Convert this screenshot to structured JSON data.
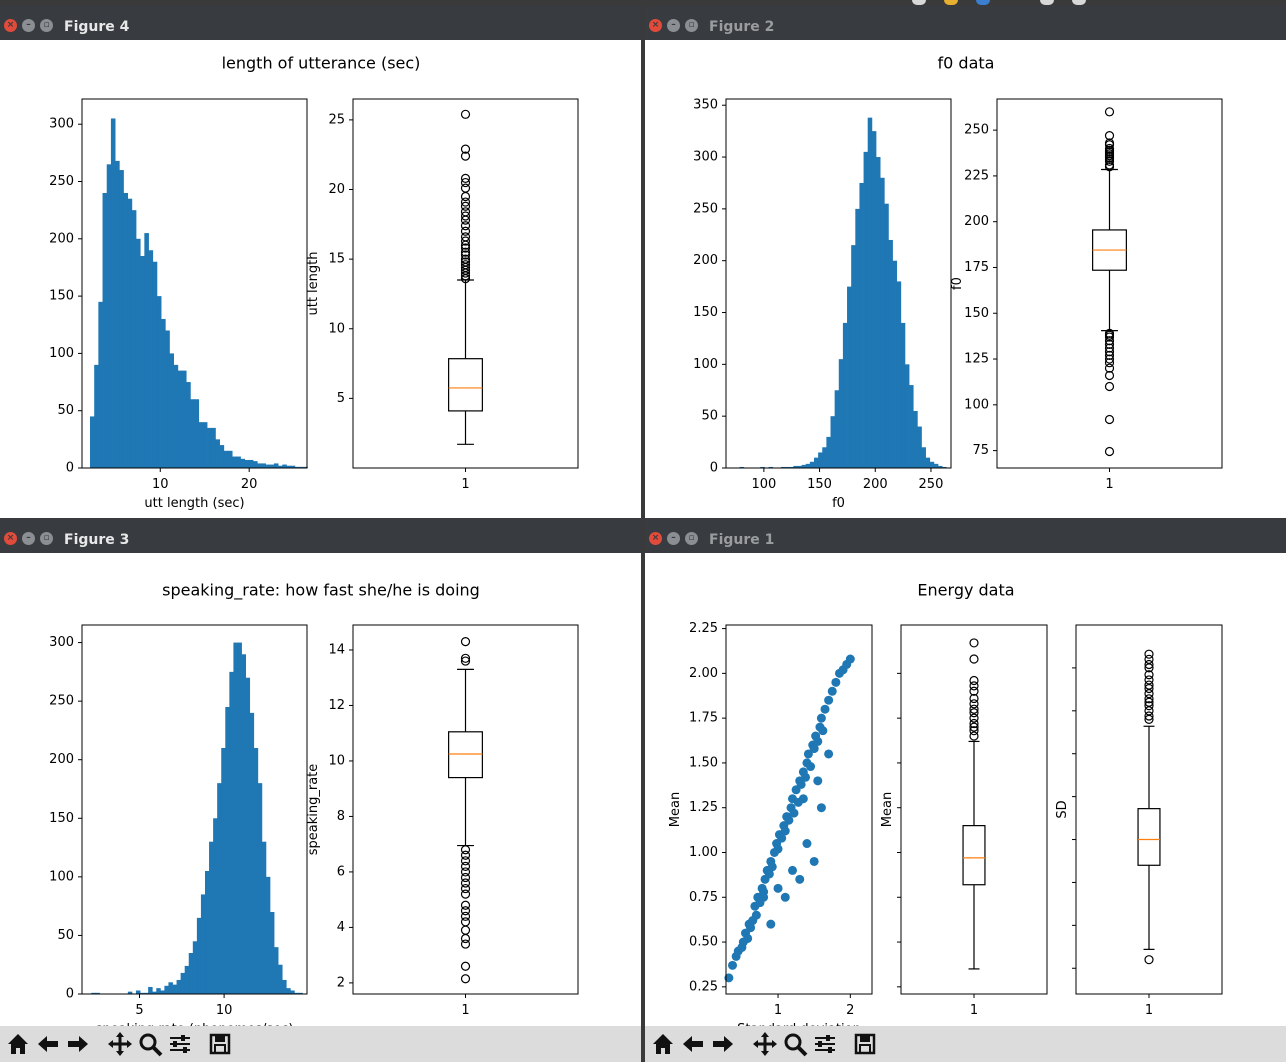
{
  "windows": [
    {
      "id": "fig4",
      "title": "Figure 4",
      "active": true
    },
    {
      "id": "fig2",
      "title": "Figure 2",
      "active": false
    },
    {
      "id": "fig3",
      "title": "Figure 3",
      "active": true
    },
    {
      "id": "fig1",
      "title": "Figure 1",
      "active": false
    }
  ],
  "toolbar": {
    "buttons": [
      "home-icon",
      "back-arrow-icon",
      "forward-arrow-icon",
      "pan-icon",
      "zoom-icon",
      "subplots-icon",
      "save-icon"
    ]
  },
  "colors": {
    "bar": "#1f77b4",
    "median": "#ff7f0e",
    "frame": "#000000"
  },
  "chart_data": [
    {
      "figure": "Figure 4",
      "suptitle": "length of utterance (sec)",
      "subplots": [
        {
          "type": "histogram",
          "xlabel": "utt length (sec)",
          "ylabel": "",
          "xlim": [
            1.2,
            26.5
          ],
          "ylim": [
            0,
            322
          ],
          "xticks": [
            10,
            20
          ],
          "yticks": [
            0,
            50,
            100,
            150,
            200,
            250,
            300
          ],
          "bin_start": 2.1,
          "bin_width": 0.47,
          "values": [
            45,
            90,
            145,
            240,
            265,
            305,
            268,
            260,
            240,
            235,
            225,
            200,
            185,
            205,
            190,
            180,
            150,
            130,
            120,
            100,
            90,
            85,
            85,
            75,
            60,
            60,
            40,
            40,
            35,
            35,
            25,
            20,
            15,
            15,
            10,
            10,
            8,
            7,
            7,
            6,
            4,
            4,
            3,
            3,
            4,
            2,
            3,
            2,
            2,
            1,
            1,
            1
          ]
        },
        {
          "type": "box",
          "xlabel": "",
          "ylabel": "utt length",
          "xlim": [
            0.5,
            1.5
          ],
          "ylim": [
            0,
            26.5
          ],
          "yticks": [
            5,
            10,
            15,
            20,
            25
          ],
          "xticklabels": [
            "1"
          ],
          "whisker_low": 1.7,
          "q1": 4.1,
          "median": 5.75,
          "q3": 7.85,
          "whisker_high": 13.5,
          "fliers": [
            13.6,
            13.8,
            14.0,
            14.2,
            14.4,
            14.6,
            14.8,
            15.0,
            15.3,
            15.5,
            15.8,
            16.0,
            16.3,
            16.6,
            17.0,
            17.4,
            17.8,
            18.1,
            18.4,
            18.8,
            19.1,
            19.5,
            20.1,
            20.5,
            20.8,
            22.4,
            22.9,
            25.4
          ]
        }
      ]
    },
    {
      "figure": "Figure 2",
      "suptitle": "f0 data",
      "subplots": [
        {
          "type": "histogram",
          "xlabel": "f0",
          "ylabel": "",
          "xlim": [
            66,
            268
          ],
          "ylim": [
            0,
            356
          ],
          "xticks": [
            100,
            150,
            200,
            250
          ],
          "yticks": [
            0,
            50,
            100,
            150,
            200,
            250,
            300,
            350
          ],
          "bin_start": 74.5,
          "bin_width": 3.71,
          "values": [
            0,
            1,
            0,
            0,
            0,
            0,
            1,
            0,
            1,
            0,
            0,
            1,
            1,
            1,
            2,
            2,
            3,
            4,
            6,
            10,
            15,
            20,
            30,
            50,
            75,
            105,
            140,
            175,
            215,
            250,
            275,
            305,
            338,
            325,
            300,
            280,
            255,
            220,
            200,
            180,
            140,
            100,
            80,
            55,
            40,
            20,
            10,
            6,
            4,
            2,
            1
          ]
        },
        {
          "type": "box",
          "xlabel": "",
          "ylabel": "f0",
          "xlim": [
            0.5,
            1.5
          ],
          "ylim": [
            65.5,
            267
          ],
          "yticks": [
            75,
            100,
            125,
            150,
            175,
            200,
            225,
            250
          ],
          "xticklabels": [
            "1"
          ],
          "whisker_low": 140.5,
          "q1": 173.5,
          "median": 184.5,
          "q3": 195.5,
          "whisker_high": 228.5,
          "fliers": [
            230,
            231,
            233,
            234,
            235,
            236,
            237,
            238,
            239,
            240,
            242,
            243,
            247,
            260,
            139,
            138,
            137,
            135,
            133,
            131,
            129,
            127,
            125,
            123,
            120,
            116,
            110,
            92,
            74.5
          ]
        }
      ]
    },
    {
      "figure": "Figure 3",
      "suptitle": "speaking_rate: how fast she/he is doing",
      "subplots": [
        {
          "type": "histogram",
          "xlabel": "speaking rate (phonemes/sec)",
          "ylabel": "",
          "xlim": [
            1.6,
            14.9
          ],
          "ylim": [
            0,
            315
          ],
          "xticks": [
            5,
            10
          ],
          "yticks": [
            0,
            50,
            100,
            150,
            200,
            250,
            300
          ],
          "bin_start": 2.15,
          "bin_width": 0.24,
          "values": [
            1,
            1,
            0,
            0,
            0,
            0,
            0,
            0,
            0,
            2,
            0,
            3,
            1,
            1,
            6,
            2,
            5,
            3,
            7,
            10,
            8,
            12,
            18,
            24,
            35,
            45,
            65,
            85,
            105,
            130,
            150,
            180,
            210,
            245,
            275,
            300,
            300,
            290,
            270,
            240,
            210,
            180,
            130,
            100,
            70,
            40,
            25,
            12,
            5,
            3,
            1,
            1
          ]
        },
        {
          "type": "box",
          "xlabel": "",
          "ylabel": "speaking_rate",
          "xlim": [
            0.5,
            1.5
          ],
          "ylim": [
            1.6,
            14.9
          ],
          "yticks": [
            2,
            4,
            6,
            8,
            10,
            12,
            14
          ],
          "xticklabels": [
            "1"
          ],
          "whisker_low": 6.95,
          "q1": 9.4,
          "median": 10.25,
          "q3": 11.05,
          "whisker_high": 13.3,
          "fliers": [
            13.6,
            13.7,
            14.3,
            6.8,
            6.6,
            6.4,
            6.2,
            6.0,
            5.8,
            5.6,
            5.4,
            5.2,
            4.8,
            4.6,
            4.4,
            4.2,
            3.9,
            3.6,
            3.4,
            2.6,
            2.15
          ]
        }
      ]
    },
    {
      "figure": "Figure 1",
      "suptitle": "Energy data",
      "subplots": [
        {
          "type": "scatter",
          "xlabel": "Standard deviation",
          "ylabel": "Mean",
          "xlim": [
            0.28,
            2.3
          ],
          "ylim": [
            0.21,
            2.27
          ],
          "xticks": [
            1,
            2
          ],
          "yticks": [
            0.25,
            0.5,
            0.75,
            1.0,
            1.25,
            1.5,
            1.75,
            2.0,
            2.25
          ],
          "x": [
            0.32,
            0.37,
            0.42,
            0.45,
            0.5,
            0.52,
            0.55,
            0.58,
            0.6,
            0.62,
            0.65,
            0.68,
            0.7,
            0.72,
            0.75,
            0.78,
            0.8,
            0.82,
            0.85,
            0.88,
            0.9,
            0.92,
            0.95,
            0.98,
            1.0,
            1.02,
            1.05,
            1.08,
            1.1,
            1.12,
            1.15,
            1.18,
            1.2,
            1.22,
            1.25,
            1.28,
            1.3,
            1.32,
            1.35,
            1.38,
            1.4,
            1.42,
            1.45,
            1.48,
            1.5,
            1.52,
            1.55,
            1.58,
            1.6,
            1.62,
            1.65,
            1.7,
            1.75,
            1.8,
            1.85,
            1.9,
            1.95,
            2.0,
            1.5,
            1.3,
            1.1,
            0.9,
            1.4,
            1.6,
            1.2,
            0.8,
            1.0,
            1.35,
            1.55,
            1.7
          ],
          "y": [
            0.3,
            0.37,
            0.42,
            0.45,
            0.47,
            0.5,
            0.55,
            0.52,
            0.6,
            0.58,
            0.62,
            0.7,
            0.65,
            0.75,
            0.72,
            0.8,
            0.78,
            0.85,
            0.9,
            0.88,
            0.95,
            0.92,
            1.0,
            1.05,
            1.02,
            1.1,
            1.08,
            1.15,
            1.12,
            1.2,
            1.18,
            1.25,
            1.3,
            1.22,
            1.35,
            1.28,
            1.4,
            1.38,
            1.45,
            1.42,
            1.5,
            1.55,
            1.48,
            1.6,
            1.58,
            1.65,
            1.62,
            1.7,
            1.75,
            1.68,
            1.8,
            1.85,
            1.9,
            1.95,
            2.0,
            2.02,
            2.05,
            2.08,
            0.95,
            0.85,
            0.75,
            0.6,
            1.05,
            1.25,
            0.9,
            0.75,
            0.8,
            1.3,
            1.4,
            1.55
          ]
        },
        {
          "type": "box",
          "xlabel": "",
          "ylabel": "Mean",
          "xlim": [
            0.5,
            1.5
          ],
          "ylim": [
            0.21,
            2.27
          ],
          "yticks": [],
          "xticklabels": [
            "1"
          ],
          "whisker_low": 0.35,
          "q1": 0.82,
          "median": 0.97,
          "q3": 1.15,
          "whisker_high": 1.62,
          "fliers": [
            1.65,
            1.68,
            1.7,
            1.72,
            1.75,
            1.78,
            1.8,
            1.83,
            1.86,
            1.9,
            1.93,
            1.96,
            2.08,
            2.17
          ]
        },
        {
          "type": "box",
          "xlabel": "",
          "ylabel": "SD",
          "xlim": [
            0.5,
            1.5
          ],
          "ylim": [
            0.1,
            2.25
          ],
          "yticks": [],
          "xticklabels": [
            "1"
          ],
          "whisker_low": 0.36,
          "q1": 0.85,
          "median": 1.0,
          "q3": 1.18,
          "whisker_high": 1.66,
          "fliers": [
            1.7,
            1.72,
            1.75,
            1.78,
            1.8,
            1.82,
            1.85,
            1.88,
            1.9,
            1.93,
            1.96,
            2.0,
            2.02,
            2.05,
            2.08,
            0.3
          ]
        }
      ]
    }
  ]
}
